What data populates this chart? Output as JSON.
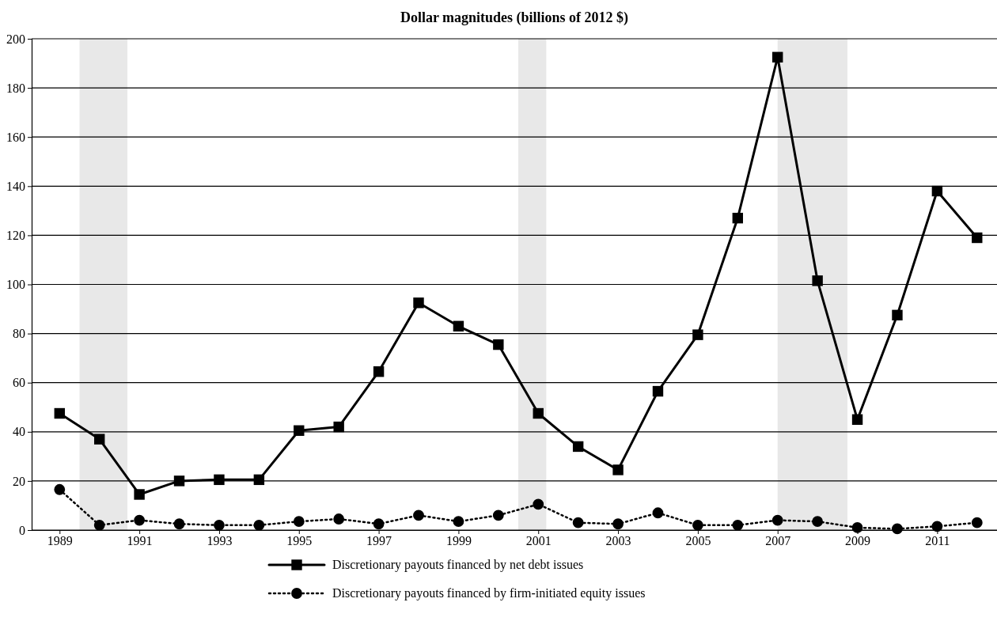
{
  "chart_data": {
    "type": "line",
    "title": "Dollar magnitudes (billions of 2012 $)",
    "x": [
      1989,
      1990,
      1991,
      1992,
      1993,
      1994,
      1995,
      1996,
      1997,
      1998,
      1999,
      2000,
      2001,
      2002,
      2003,
      2004,
      2005,
      2006,
      2007,
      2008,
      2009,
      2010,
      2011,
      2012
    ],
    "series": [
      {
        "name": "Discretionary payouts financed by net debt issues",
        "color": "#000000",
        "marker": "square",
        "line_style": "solid",
        "values": [
          47.5,
          37,
          14.5,
          20,
          20.5,
          20.5,
          40.5,
          42,
          64.5,
          92.5,
          83,
          75.5,
          47.5,
          34,
          24.5,
          56.5,
          79.5,
          127,
          192.5,
          101.5,
          45,
          87.5,
          138,
          119
        ]
      },
      {
        "name": "Discretionary payouts financed by firm-initiated equity issues",
        "color": "#000000",
        "marker": "circle",
        "line_style": "dotted",
        "values": [
          16.5,
          2,
          4,
          2.5,
          2,
          2,
          3.5,
          4.5,
          2.5,
          6,
          3.5,
          6,
          10.5,
          3,
          2.5,
          7,
          2,
          2,
          4,
          3.5,
          1,
          0.5,
          1.5,
          3
        ]
      }
    ],
    "xlim": [
      1988.3,
      2012.5
    ],
    "xticks": [
      1989,
      1991,
      1993,
      1995,
      1997,
      1999,
      2001,
      2003,
      2005,
      2007,
      2009,
      2011
    ],
    "ylim": [
      0,
      200
    ],
    "yticks": [
      0,
      20,
      40,
      60,
      80,
      100,
      120,
      140,
      160,
      180,
      200
    ],
    "bands": [
      {
        "axis": "x",
        "from": 1989.5,
        "to": 1990.7,
        "color": "#e8e8e8"
      },
      {
        "axis": "x",
        "from": 2000.5,
        "to": 2001.2,
        "color": "#e8e8e8"
      },
      {
        "axis": "x",
        "from": 2007,
        "to": 2008.75,
        "color": "#e8e8e8"
      }
    ],
    "grid": "y",
    "legend": "bottom"
  }
}
